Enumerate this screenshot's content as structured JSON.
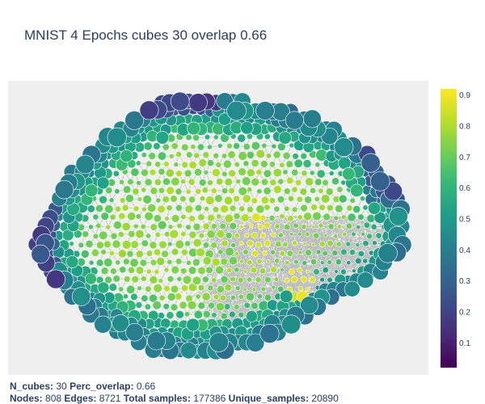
{
  "title": "MNIST 4 Epochs cubes 30 overlap 0.66",
  "stats": {
    "n_cubes_label": "N_cubes:",
    "n_cubes": "30",
    "perc_overlap_label": "Perc_overlap:",
    "perc_overlap": "0.66",
    "nodes_label": "Nodes:",
    "nodes": "808",
    "edges_label": "Edges:",
    "edges": "8721",
    "total_samples_label": "Total samples:",
    "total_samples": "177386",
    "unique_samples_label": "Unique_samples:",
    "unique_samples": "20890"
  },
  "chart_data": {
    "type": "scatter",
    "title": "MNIST 4 Epochs cubes 30 overlap 0.66",
    "colorscale": "Viridis",
    "colorbar": {
      "ticks": [
        "0.1",
        "0.2",
        "0.3",
        "0.4",
        "0.5",
        "0.6",
        "0.7",
        "0.8",
        "0.9"
      ],
      "range": [
        0.02,
        0.92
      ]
    },
    "colors": {
      "edge": "#bbbbbb",
      "plot_bg": "#efefef",
      "text": "#2a3f5f"
    },
    "grid": false,
    "legend": "colorbar right"
  }
}
